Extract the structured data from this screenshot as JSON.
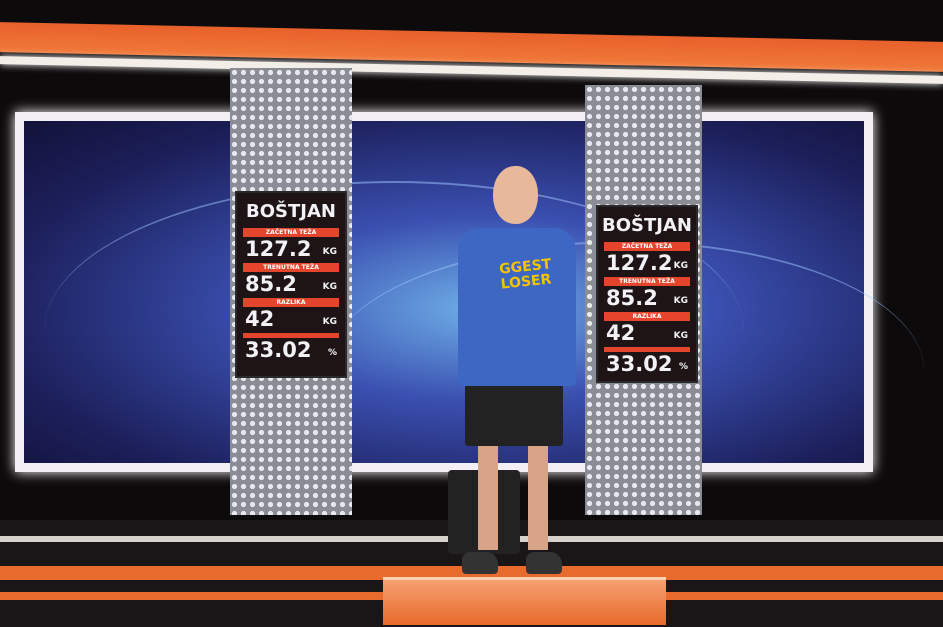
{
  "boards": [
    {
      "name": "BOŠTJAN",
      "rows": [
        {
          "label": "ZAČETNA TEŽA",
          "value": "127.2",
          "unit": "KG"
        },
        {
          "label": "TRENUTNA TEŽA",
          "value": "85.2",
          "unit": "KG"
        },
        {
          "label": "RAZLIKA",
          "value": "42",
          "unit": "KG"
        },
        {
          "label": "",
          "value": "33.02",
          "unit": "%"
        }
      ]
    },
    {
      "name": "BOŠTJAN",
      "rows": [
        {
          "label": "ZAČETNA TEŽA",
          "value": "127.2",
          "unit": "KG"
        },
        {
          "label": "TRENUTNA TEŽA",
          "value": "85.2",
          "unit": "KG"
        },
        {
          "label": "RAZLIKA",
          "value": "42",
          "unit": "KG"
        },
        {
          "label": "",
          "value": "33.02",
          "unit": "%"
        }
      ]
    }
  ],
  "shirt_logo": [
    "GGEST",
    "LOSER"
  ],
  "colors": {
    "accent": "#e86a2c",
    "shirt": "#3e67c4",
    "label_bar": "#e5452c"
  }
}
